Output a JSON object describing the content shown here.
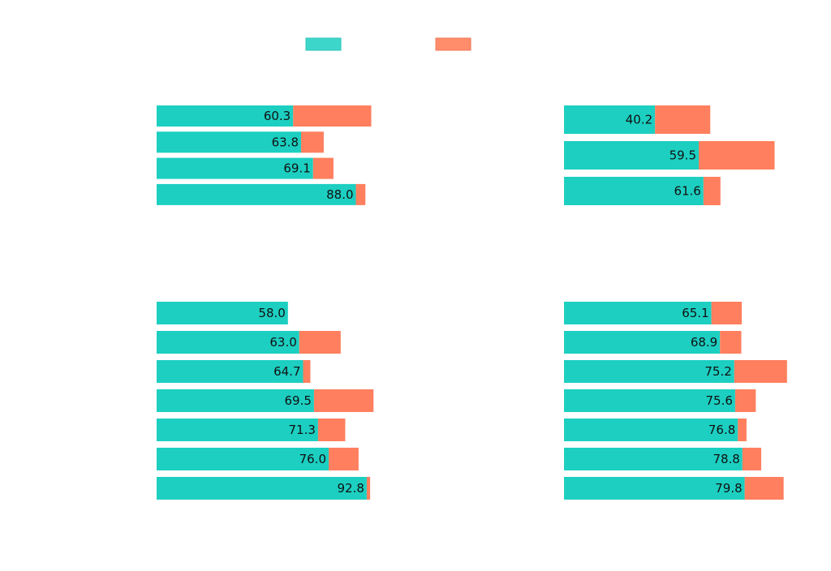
{
  "colors": {
    "base": "#1ccfc1",
    "extra": "#ff7f5e",
    "legend_base": "#3dd6ca",
    "legend_extra": "#ff8c6b",
    "label": "#111111"
  },
  "legend": {
    "position": "top-center",
    "items": [
      {
        "swatch": "base-swatch",
        "label": ""
      },
      {
        "swatch": "extra-swatch",
        "label": ""
      }
    ]
  },
  "chart_data": [
    {
      "type": "bar",
      "orientation": "horizontal",
      "stacked": true,
      "panel": "top-left",
      "categories": [
        "",
        "",
        "",
        ""
      ],
      "series": [
        {
          "values": [
            60.3,
            63.8,
            69.1,
            88.0
          ]
        },
        {
          "values": [
            34.5,
            10.0,
            9.0,
            4.2
          ]
        }
      ],
      "labels": [
        "60.3",
        "63.8",
        "69.1",
        "88.0"
      ],
      "xlim": [
        0,
        100
      ],
      "grid": false
    },
    {
      "type": "bar",
      "orientation": "horizontal",
      "stacked": true,
      "panel": "top-right",
      "categories": [
        "",
        "",
        ""
      ],
      "series": [
        {
          "values": [
            40.2,
            59.5,
            61.6
          ]
        },
        {
          "values": [
            24.4,
            33.5,
            7.5
          ]
        }
      ],
      "labels": [
        "40.2",
        "59.5",
        "61.6"
      ],
      "xlim": [
        0,
        100
      ],
      "grid": false
    },
    {
      "type": "bar",
      "orientation": "horizontal",
      "stacked": true,
      "panel": "bottom-left",
      "categories": [
        "",
        "",
        "",
        "",
        "",
        "",
        ""
      ],
      "series": [
        {
          "values": [
            58.0,
            63.0,
            64.7,
            69.5,
            71.3,
            76.0,
            92.8
          ]
        },
        {
          "values": [
            0.0,
            18.3,
            3.2,
            26.3,
            12.0,
            13.2,
            1.5
          ]
        }
      ],
      "labels": [
        "58.0",
        "63.0",
        "64.7",
        "69.5",
        "71.3",
        "76.0",
        "92.8"
      ],
      "xlim": [
        0,
        100
      ],
      "grid": false
    },
    {
      "type": "bar",
      "orientation": "horizontal",
      "stacked": true,
      "panel": "bottom-right",
      "categories": [
        "",
        "",
        "",
        "",
        "",
        "",
        ""
      ],
      "series": [
        {
          "values": [
            65.1,
            68.9,
            75.2,
            75.6,
            76.8,
            78.8,
            79.8
          ]
        },
        {
          "values": [
            13.4,
            9.4,
            23.3,
            9.1,
            3.8,
            8.3,
            17.2
          ]
        }
      ],
      "labels": [
        "65.1",
        "68.9",
        "75.2",
        "75.6",
        "76.8",
        "78.8",
        "79.8"
      ],
      "xlim": [
        0,
        100
      ],
      "grid": false
    }
  ]
}
